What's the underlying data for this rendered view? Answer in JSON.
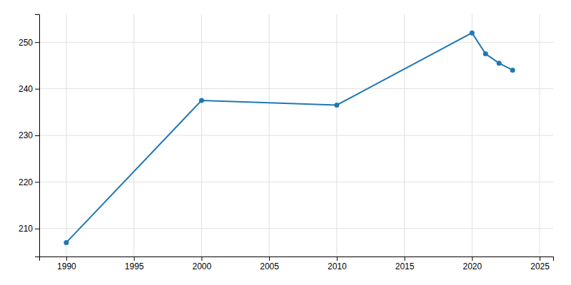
{
  "chart_data": {
    "type": "line",
    "x": [
      1990,
      2000,
      2010,
      2020,
      2021,
      2022,
      2023
    ],
    "values": [
      207,
      237.5,
      236.5,
      252,
      247.5,
      245.5,
      244
    ],
    "xlim": [
      1988,
      2026
    ],
    "ylim": [
      204,
      256
    ],
    "xticks": [
      1990,
      1995,
      2000,
      2005,
      2010,
      2015,
      2020,
      2025
    ],
    "yticks": [
      210,
      220,
      230,
      240,
      250
    ],
    "grid": true,
    "marker": "circle"
  }
}
